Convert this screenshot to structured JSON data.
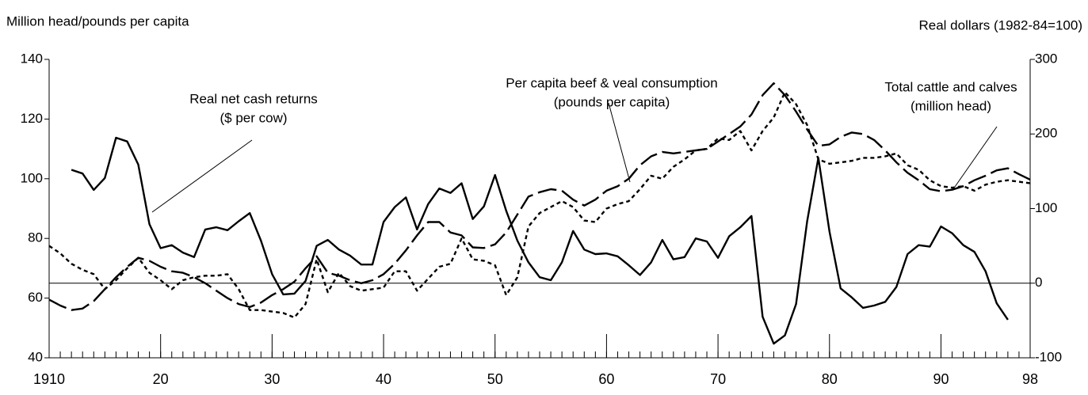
{
  "chart_data": {
    "type": "line",
    "ylabel": "Million head/pounds per capita",
    "y2label": "Real dollars (1982-84=100)",
    "x": [
      1910,
      1911,
      1912,
      1913,
      1914,
      1915,
      1916,
      1917,
      1918,
      1919,
      1920,
      1921,
      1922,
      1923,
      1924,
      1925,
      1926,
      1927,
      1928,
      1929,
      1930,
      1931,
      1932,
      1933,
      1934,
      1935,
      1936,
      1937,
      1938,
      1939,
      1940,
      1941,
      1942,
      1943,
      1944,
      1945,
      1946,
      1947,
      1948,
      1949,
      1950,
      1951,
      1952,
      1953,
      1954,
      1955,
      1956,
      1957,
      1958,
      1959,
      1960,
      1961,
      1962,
      1963,
      1964,
      1965,
      1966,
      1967,
      1968,
      1969,
      1970,
      1971,
      1972,
      1973,
      1974,
      1975,
      1976,
      1977,
      1978,
      1979,
      1980,
      1981,
      1982,
      1983,
      1984,
      1985,
      1986,
      1987,
      1988,
      1989,
      1990,
      1991,
      1992,
      1993,
      1994,
      1995,
      1996,
      1997,
      1998
    ],
    "xlim": [
      1910,
      1998
    ],
    "xticks": [
      1910,
      {
        "value": 1920,
        "label": "20"
      },
      {
        "value": 1930,
        "label": "30"
      },
      {
        "value": 1940,
        "label": "40"
      },
      {
        "value": 1950,
        "label": "50"
      },
      {
        "value": 1960,
        "label": "60"
      },
      {
        "value": 1970,
        "label": "70"
      },
      {
        "value": 1980,
        "label": "80"
      },
      {
        "value": 1990,
        "label": "90"
      },
      {
        "value": 1998,
        "label": "98"
      }
    ],
    "ylim": [
      40,
      140
    ],
    "yticks": [
      40,
      60,
      80,
      100,
      120,
      140
    ],
    "y2lim": [
      -100,
      300
    ],
    "y2ticks": [
      -100,
      0,
      100,
      200,
      300
    ],
    "y2_refline": 0,
    "series": [
      {
        "label_lines": [
          "Real net cash returns",
          "($ per cow)"
        ],
        "axis": "y2",
        "color": "#000000",
        "style": "solid",
        "values": [
          null,
          null,
          152,
          147,
          125,
          141,
          195,
          190,
          159,
          79,
          47,
          51,
          41,
          35,
          72,
          75,
          71,
          83,
          94,
          57,
          12,
          -15,
          -14,
          3,
          50,
          58,
          45,
          37,
          25,
          25,
          82,
          102,
          115,
          72,
          106,
          127,
          121,
          134,
          86,
          103,
          145,
          97,
          57,
          28,
          8,
          4,
          28,
          70,
          45,
          39,
          40,
          36,
          24,
          11,
          28,
          58,
          32,
          35,
          60,
          56,
          34,
          63,
          75,
          90,
          -45,
          -81,
          -70,
          -28,
          83,
          168,
          69,
          -7,
          -19,
          -33,
          -30,
          -25,
          -5,
          39,
          51,
          49,
          76,
          67,
          51,
          42,
          16,
          -27,
          -49,
          null,
          null
        ]
      },
      {
        "label_lines": [
          "Per capita beef & veal consumption",
          "(pounds per capita)"
        ],
        "axis": "y",
        "color": "#000000",
        "style": "dotted",
        "values": [
          77.5,
          75,
          71.5,
          69.5,
          68,
          63,
          66,
          70,
          73.5,
          68.5,
          66,
          63,
          66,
          67,
          67.5,
          67.5,
          68,
          63,
          56,
          56,
          55.5,
          55,
          53.5,
          58,
          73,
          62,
          68.5,
          64,
          62.5,
          63,
          63.5,
          69,
          69,
          62.5,
          66.5,
          70.5,
          71.5,
          80,
          73,
          72.5,
          71,
          61,
          67,
          84,
          88.5,
          90.5,
          92.5,
          90.5,
          86,
          85.5,
          90,
          91.5,
          92.5,
          96.5,
          101,
          100,
          104,
          106.5,
          109.5,
          110,
          113.5,
          113,
          116,
          109.5,
          116,
          120.5,
          129,
          125,
          118,
          106.5,
          105,
          105.5,
          106,
          107,
          107,
          107.5,
          108.5,
          104.5,
          103,
          99.5,
          97.5,
          97,
          97.5,
          96,
          98,
          99,
          99.5,
          99,
          98.5
        ]
      },
      {
        "label_lines": [
          "Total cattle and calves",
          "(million head)"
        ],
        "axis": "y",
        "color": "#000000",
        "style": "dashed",
        "values": [
          59.5,
          57.5,
          56,
          56.5,
          59,
          63,
          67,
          70.5,
          73.5,
          72.5,
          70.5,
          69,
          68.5,
          67,
          65,
          62.5,
          60,
          58,
          57,
          58.5,
          61,
          63,
          65.5,
          70,
          74,
          68.5,
          67.5,
          66,
          65,
          66,
          68,
          71.5,
          76,
          81,
          85.5,
          85.5,
          82,
          81,
          77,
          76.8,
          78,
          82,
          88,
          94,
          95.5,
          96.5,
          96,
          93,
          91,
          93,
          96,
          97.5,
          100,
          104.5,
          107.5,
          109,
          108.5,
          109,
          109.5,
          110,
          112.5,
          115,
          117.5,
          121.5,
          128,
          132,
          128,
          122.5,
          116.5,
          111,
          111.5,
          114,
          115.5,
          115,
          113,
          109.5,
          105.5,
          102,
          99.5,
          96.5,
          95.8,
          96.3,
          97.5,
          99.5,
          101,
          102.8,
          103.5,
          101.5,
          99.7
        ]
      }
    ]
  }
}
